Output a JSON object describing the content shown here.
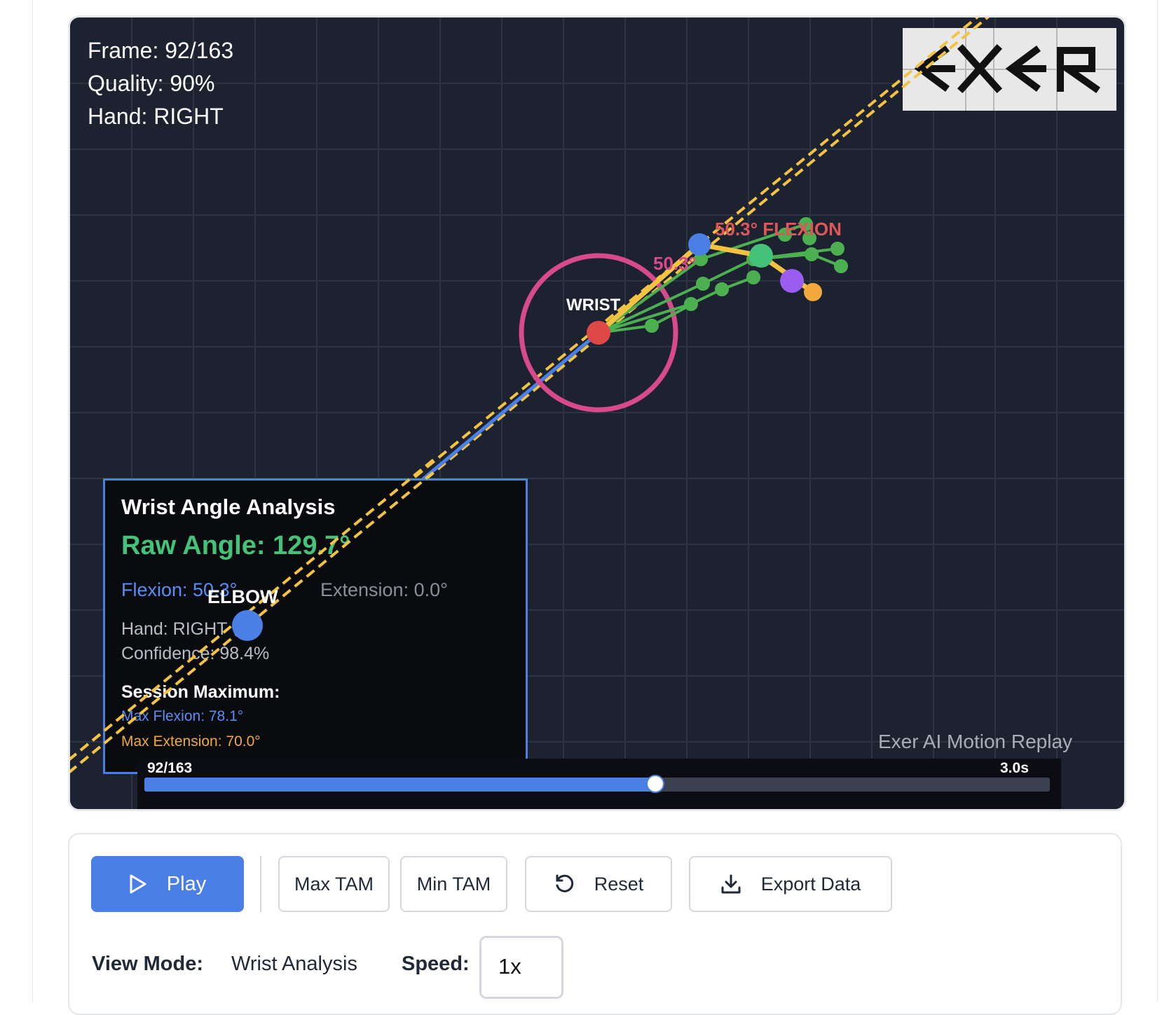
{
  "overlay": {
    "frame": "Frame: 92/163",
    "quality": "Quality: 90%",
    "hand": "Hand: RIGHT"
  },
  "labels": {
    "wrist": "WRIST",
    "elbow": "ELBOW",
    "flexion_tag": "50.3° FLEXION",
    "angle_tag": "50.3°"
  },
  "logo": {
    "text": "EXER",
    "icon": "exer-logo"
  },
  "analysis": {
    "title": "Wrist Angle Analysis",
    "raw_angle": "Raw Angle: 129.7°",
    "flexion": "Flexion: 50.3°",
    "extension": "Extension: 0.0°",
    "hand": "Hand: RIGHT",
    "confidence": "Confidence: 98.4%",
    "session_title": "Session Maximum:",
    "max_flexion": "Max Flexion: 78.1°",
    "max_extension": "Max Extension: 70.0°"
  },
  "watermark": "Exer AI Motion Replay",
  "timeline": {
    "frame_label": "92/163",
    "time_label": "3.0s",
    "current_frame": 92,
    "total_frames": 163
  },
  "controls": {
    "play": "Play",
    "max_tam": "Max TAM",
    "min_tam": "Min TAM",
    "reset": "Reset",
    "export": "Export Data",
    "view_mode_label": "View Mode:",
    "view_mode_value": "Wrist Analysis",
    "speed_label": "Speed:",
    "speed_value": "1x"
  },
  "colors": {
    "accent": "#4a7fe6",
    "wrist_joint": "#e04848",
    "elbow_joint": "#4a7fe6",
    "angle_circle": "#d94a8c",
    "flexion_label": "#e05555",
    "hand_skeleton": "#4caf50",
    "reference_line": "#f5c342"
  }
}
